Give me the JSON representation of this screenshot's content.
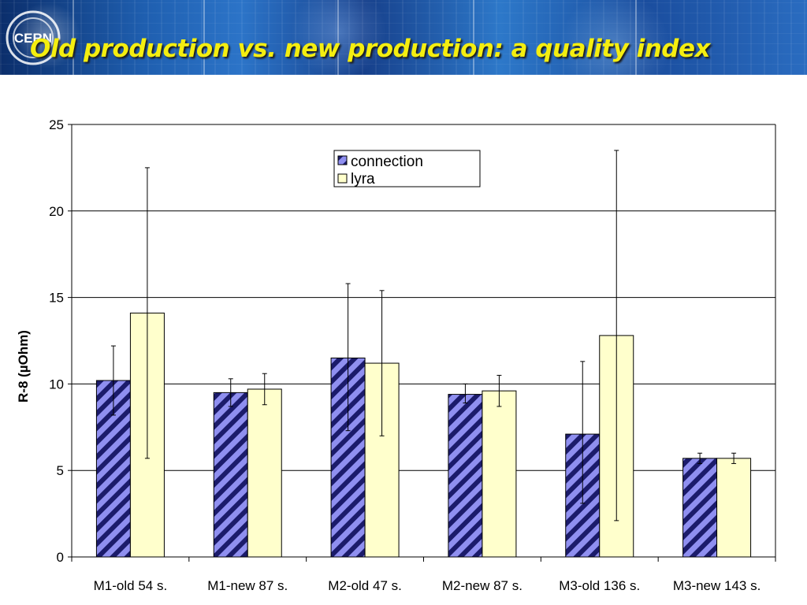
{
  "slide": {
    "title": "Old production vs. new production: a quality index",
    "logo_text": "CERN"
  },
  "colors": {
    "banner_blue": "#1f5fb0",
    "title_yellow": "#f4ee10",
    "connection_fill": "#8f8ff0",
    "connection_hatch": "#1b1b6b",
    "lyra_fill": "#ffffcc"
  },
  "chart_data": {
    "type": "bar",
    "title": "",
    "xlabel": "",
    "ylabel": "R-8 (µOhm)",
    "ylim": [
      0,
      25
    ],
    "yticks": [
      0,
      5,
      10,
      15,
      20,
      25
    ],
    "grid": true,
    "legend_placement": "top-center",
    "categories": [
      "M1-old 54 s.",
      "M1-new 87 s.",
      "M2-old 47 s.",
      "M2-new 87 s.",
      "M3-old 136 s.",
      "M3-new 143 s."
    ],
    "series": [
      {
        "name": "connection",
        "pattern": "diagonal-hatch",
        "values": [
          10.2,
          9.5,
          11.5,
          9.4,
          7.1,
          5.7
        ],
        "error_low": [
          8.2,
          8.7,
          7.3,
          8.9,
          3.1,
          5.4
        ],
        "error_high": [
          12.2,
          10.3,
          15.8,
          10.0,
          11.3,
          6.0
        ]
      },
      {
        "name": "lyra",
        "pattern": "solid",
        "values": [
          14.1,
          9.7,
          11.2,
          9.6,
          12.8,
          5.7
        ],
        "error_low": [
          5.7,
          8.8,
          7.0,
          8.7,
          2.1,
          5.4
        ],
        "error_high": [
          22.5,
          10.6,
          15.4,
          10.5,
          23.5,
          6.0
        ]
      }
    ]
  }
}
